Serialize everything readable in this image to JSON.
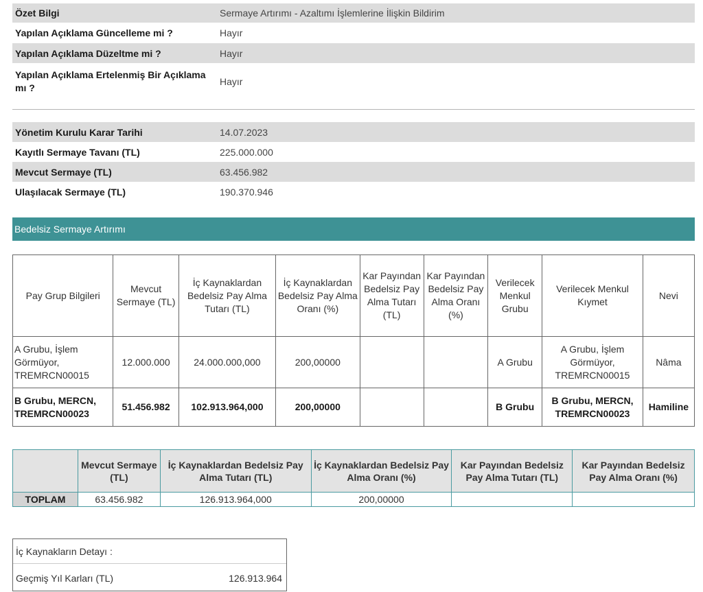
{
  "summary": [
    {
      "label": "Özet Bilgi",
      "value": "Sermaye Artırımı - Azaltımı İşlemlerine İlişkin Bildirim"
    },
    {
      "label": "Yapılan Açıklama Güncelleme mi ?",
      "value": "Hayır"
    },
    {
      "label": "Yapılan Açıklama Düzeltme mi ?",
      "value": "Hayır"
    },
    {
      "label": "Yapılan Açıklama Ertelenmiş Bir Açıklama mı ?",
      "value": "Hayır"
    }
  ],
  "capital": [
    {
      "label": "Yönetim Kurulu Karar Tarihi",
      "value": "14.07.2023"
    },
    {
      "label": "Kayıtlı Sermaye Tavanı (TL)",
      "value": "225.000.000"
    },
    {
      "label": "Mevcut Sermaye (TL)",
      "value": "63.456.982"
    },
    {
      "label": "Ulaşılacak Sermaye (TL)",
      "value": "190.370.946"
    }
  ],
  "section_title": "Bedelsiz Sermaye Artırımı",
  "share_table": {
    "headers": [
      "Pay Grup Bilgileri",
      "Mevcut Sermaye (TL)",
      "İç Kaynaklardan Bedelsiz Pay Alma Tutarı (TL)",
      "İç Kaynaklardan Bedelsiz Pay Alma Oranı (%)",
      "Kar Payından Bedelsiz Pay Alma Tutarı (TL)",
      "Kar Payından Bedelsiz Pay Alma Oranı (%)",
      "Verilecek Menkul Grubu",
      "Verilecek Menkul Kıymet",
      "Nevi"
    ],
    "rows": [
      [
        "A Grubu, İşlem Görmüyor, TREMRCN00015",
        "12.000.000",
        "24.000.000,000",
        "200,00000",
        "",
        "",
        "A Grubu",
        "A Grubu, İşlem Görmüyor, TREMRCN00015",
        "Nâma"
      ],
      [
        "B Grubu, MERCN, TREMRCN00023",
        "51.456.982",
        "102.913.964,000",
        "200,00000",
        "",
        "",
        "B Grubu",
        "B Grubu, MERCN, TREMRCN00023",
        "Hamiline"
      ]
    ]
  },
  "totals": {
    "headers": [
      "Mevcut Sermaye (TL)",
      "İç Kaynaklardan Bedelsiz Pay Alma Tutarı (TL)",
      "İç Kaynaklardan Bedelsiz Pay Alma Oranı (%)",
      "Kar Payından Bedelsiz Pay Alma Tutarı (TL)",
      "Kar Payından Bedelsiz Pay Alma Oranı (%)"
    ],
    "label": "TOPLAM",
    "values": [
      "63.456.982",
      "126.913.964,000",
      "200,00000",
      "",
      ""
    ]
  },
  "internal_sources": {
    "title": "İç Kaynakların Detayı :",
    "item_label": "Geçmiş Yıl Karları (TL)",
    "item_value": "126.913.964"
  }
}
